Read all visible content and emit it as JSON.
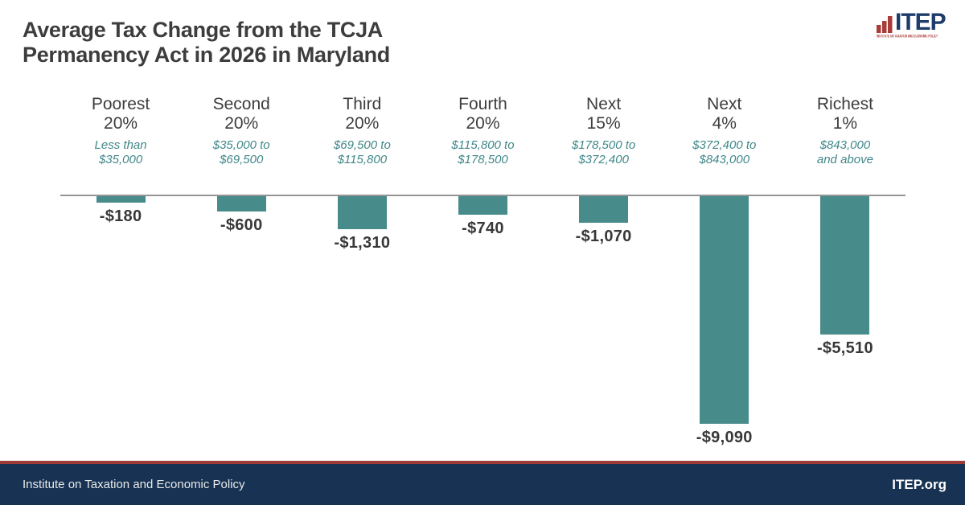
{
  "header": {
    "title_lines": [
      "Average Tax Change from the TCJA",
      "Permanency Act in 2026 in Maryland"
    ],
    "logo": {
      "text": "ITEP",
      "caption": "INSTITUTE ON TAXATION AND ECONOMIC POLICY",
      "navy": "#1d3c69",
      "red": "#a93c38"
    }
  },
  "chart_data": {
    "type": "bar",
    "title": "Average Tax Change from the TCJA Permanency Act in 2026 in Maryland",
    "orientation": "vertical",
    "categories": [
      "Poorest 20%",
      "Second 20%",
      "Third 20%",
      "Fourth 20%",
      "Next 15%",
      "Next 4%",
      "Richest 1%"
    ],
    "category_lines": [
      [
        "Poorest",
        "20%"
      ],
      [
        "Second",
        "20%"
      ],
      [
        "Third",
        "20%"
      ],
      [
        "Fourth",
        "20%"
      ],
      [
        "Next",
        "15%"
      ],
      [
        "Next",
        "4%"
      ],
      [
        "Richest",
        "1%"
      ]
    ],
    "income_ranges": [
      "Less than $35,000",
      "$35,000 to $69,500",
      "$69,500 to $115,800",
      "$115,800 to $178,500",
      "$178,500 to $372,400",
      "$372,400 to $843,000",
      "$843,000 and above"
    ],
    "income_range_lines": [
      [
        "Less than",
        "$35,000"
      ],
      [
        "$35,000 to",
        "$69,500"
      ],
      [
        "$69,500 to",
        "$115,800"
      ],
      [
        "$115,800 to",
        "$178,500"
      ],
      [
        "$178,500 to",
        "$372,400"
      ],
      [
        "$372,400 to",
        "$843,000"
      ],
      [
        "$843,000",
        "and above"
      ]
    ],
    "values": [
      -180,
      -600,
      -1310,
      -740,
      -1070,
      -9090,
      -5510
    ],
    "value_labels": [
      "-$180",
      "-$600",
      "-$1,310",
      "-$740",
      "-$1,070",
      "-$9,090",
      "-$5,510"
    ],
    "ylim": [
      -9500,
      0
    ],
    "grid": false,
    "legend": false,
    "bar_color": "#478b8a",
    "range_text_color": "#418789",
    "baseline_color": "#949494",
    "label_color": "#383838"
  },
  "footer": {
    "left_text": "Institute on Taxation and Economic Policy",
    "right_text": "ITEP.org",
    "bar_color": "#173253",
    "accent_color": "#9e3a38"
  }
}
